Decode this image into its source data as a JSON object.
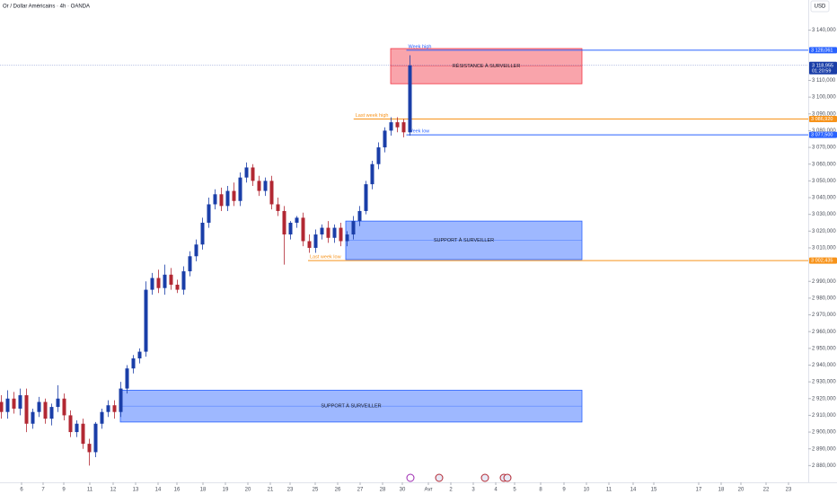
{
  "chart_data": {
    "type": "candlestick",
    "title": "Or / Dollar Américains · 4h · OANDA",
    "currency": "USD",
    "up_color": "#1a3ea8",
    "down_color": "#b22833",
    "xlim": [
      0,
      36
    ],
    "ylim": [
      2870,
      3158
    ],
    "grid": false,
    "xticks": [
      {
        "value": 0.96,
        "label": "6"
      },
      {
        "value": 1.92,
        "label": "7"
      },
      {
        "value": 2.84,
        "label": "9"
      },
      {
        "value": 4.0,
        "label": "11"
      },
      {
        "value": 5.04,
        "label": "12"
      },
      {
        "value": 6.04,
        "label": "13"
      },
      {
        "value": 7.04,
        "label": "14"
      },
      {
        "value": 7.88,
        "label": "16"
      },
      {
        "value": 9.04,
        "label": "18"
      },
      {
        "value": 10.04,
        "label": "19"
      },
      {
        "value": 11.04,
        "label": "20"
      },
      {
        "value": 12.04,
        "label": "21"
      },
      {
        "value": 12.92,
        "label": "23"
      },
      {
        "value": 14.04,
        "label": "25"
      },
      {
        "value": 15.04,
        "label": "26"
      },
      {
        "value": 16.04,
        "label": "27"
      },
      {
        "value": 17.04,
        "label": "28"
      },
      {
        "value": 17.92,
        "label": "30"
      },
      {
        "value": 19.08,
        "label": "Avr"
      },
      {
        "value": 20.08,
        "label": "2"
      },
      {
        "value": 21.08,
        "label": "3"
      },
      {
        "value": 22.08,
        "label": "4"
      },
      {
        "value": 22.92,
        "label": "5"
      },
      {
        "value": 24.08,
        "label": "8"
      },
      {
        "value": 25.12,
        "label": "9"
      },
      {
        "value": 26.12,
        "label": "10"
      },
      {
        "value": 27.12,
        "label": "11"
      },
      {
        "value": 28.2,
        "label": "14"
      },
      {
        "value": 29.12,
        "label": "15"
      },
      {
        "value": 31.12,
        "label": "17"
      },
      {
        "value": 32.12,
        "label": "18"
      },
      {
        "value": 33.0,
        "label": "20"
      },
      {
        "value": 34.12,
        "label": "22"
      },
      {
        "value": 35.12,
        "label": "23"
      }
    ],
    "yticks": [
      {
        "value": 2880,
        "label": "2 880,000"
      },
      {
        "value": 2890,
        "label": "2 890,000"
      },
      {
        "value": 2900,
        "label": "2 900,000"
      },
      {
        "value": 2910,
        "label": "2 910,000"
      },
      {
        "value": 2920,
        "label": "2 920,000"
      },
      {
        "value": 2930,
        "label": "2 930,000"
      },
      {
        "value": 2940,
        "label": "2 940,000"
      },
      {
        "value": 2950,
        "label": "2 950,000"
      },
      {
        "value": 2960,
        "label": "2 960,000"
      },
      {
        "value": 2970,
        "label": "2 970,000"
      },
      {
        "value": 2980,
        "label": "2 980,000"
      },
      {
        "value": 2990,
        "label": "2 990,000"
      },
      {
        "value": 3010,
        "label": "3 010,000"
      },
      {
        "value": 3020,
        "label": "3 020,000"
      },
      {
        "value": 3030,
        "label": "3 030,000"
      },
      {
        "value": 3040,
        "label": "3 040,000"
      },
      {
        "value": 3050,
        "label": "3 050,000"
      },
      {
        "value": 3060,
        "label": "3 060,000"
      },
      {
        "value": 3070,
        "label": "3 070,000"
      },
      {
        "value": 3080,
        "label": "3 080,000"
      },
      {
        "value": 3090,
        "label": "3 090,000"
      },
      {
        "value": 3100,
        "label": "3 100,000"
      },
      {
        "value": 3110,
        "label": "3 110,000"
      },
      {
        "value": 3140,
        "label": "3 140,000"
      }
    ],
    "x": [
      0.06,
      0.34,
      0.62,
      0.9,
      1.18,
      1.46,
      1.74,
      2.02,
      2.3,
      2.58,
      2.86,
      3.14,
      3.42,
      3.7,
      3.98,
      4.26,
      4.54,
      4.82,
      5.1,
      5.38,
      5.66,
      5.94,
      6.22,
      6.5,
      6.78,
      7.06,
      7.34,
      7.62,
      7.9,
      8.18,
      8.46,
      8.74,
      9.02,
      9.3,
      9.58,
      9.86,
      10.14,
      10.42,
      10.7,
      10.98,
      11.26,
      11.54,
      11.82,
      12.1,
      12.38,
      12.66,
      12.94,
      13.22,
      13.5,
      13.78,
      14.06,
      14.34,
      14.62,
      14.9,
      15.18,
      15.46,
      15.74,
      16.02,
      16.3,
      16.58,
      16.86,
      17.14,
      17.42,
      17.7,
      17.98,
      18.26
    ],
    "open": [
      2918,
      2912,
      2920,
      2914,
      2922,
      2905,
      2912,
      2918,
      2908,
      2915,
      2920,
      2910,
      2900,
      2905,
      2893,
      2888,
      2905,
      2912,
      2916,
      2912,
      2926,
      2938,
      2944,
      2948,
      2985,
      2992,
      2986,
      2994,
      2988,
      2985,
      2996,
      3005,
      3012,
      3025,
      3036,
      3042,
      3035,
      3044,
      3038,
      3052,
      3058,
      3050,
      3044,
      3050,
      3036,
      3032,
      3018,
      3025,
      3028,
      3014,
      3010,
      3018,
      3022,
      3016,
      3022,
      3014,
      3018,
      3026,
      3032,
      3048,
      3060,
      3070,
      3080,
      3085,
      3085,
      3079
    ],
    "high": [
      2922,
      2925,
      2924,
      2926,
      2926,
      2914,
      2921,
      2920,
      2917,
      2928,
      2923,
      2913,
      2907,
      2908,
      2896,
      2906,
      2914,
      2919,
      2919,
      2930,
      2940,
      2946,
      2950,
      2990,
      2995,
      2997,
      3000,
      2998,
      2991,
      2999,
      3008,
      3015,
      3028,
      3040,
      3045,
      3046,
      3047,
      3049,
      3055,
      3061,
      3060,
      3053,
      3052,
      3053,
      3040,
      3035,
      3026,
      3029,
      3031,
      3018,
      3021,
      3024,
      3026,
      3024,
      3025,
      3020,
      3029,
      3035,
      3050,
      3062,
      3073,
      3082,
      3088,
      3088,
      3087,
      3125
    ],
    "low": [
      2908,
      2908,
      2911,
      2910,
      2900,
      2902,
      2909,
      2905,
      2904,
      2912,
      2907,
      2897,
      2897,
      2890,
      2880,
      2885,
      2902,
      2909,
      2908,
      2909,
      2923,
      2935,
      2941,
      2945,
      2982,
      2983,
      2982,
      2985,
      2983,
      2982,
      2993,
      3002,
      3009,
      3022,
      3033,
      3032,
      3032,
      3035,
      3035,
      3049,
      3047,
      3041,
      3041,
      3033,
      3029,
      3000,
      3015,
      3022,
      3011,
      3007,
      3007,
      3015,
      3013,
      3013,
      3011,
      3011,
      3015,
      3023,
      3030,
      3045,
      3057,
      3067,
      3077,
      3079,
      3076,
      3077
    ],
    "close": [
      2912,
      2920,
      2914,
      2922,
      2905,
      2912,
      2918,
      2908,
      2915,
      2920,
      2910,
      2900,
      2905,
      2893,
      2888,
      2905,
      2912,
      2916,
      2912,
      2926,
      2938,
      2944,
      2948,
      2985,
      2992,
      2986,
      2994,
      2988,
      2985,
      2996,
      3005,
      3012,
      3025,
      3036,
      3042,
      3035,
      3044,
      3038,
      3052,
      3058,
      3050,
      3044,
      3050,
      3036,
      3032,
      3018,
      3025,
      3028,
      3014,
      3010,
      3018,
      3022,
      3016,
      3022,
      3014,
      3018,
      3026,
      3032,
      3048,
      3060,
      3070,
      3080,
      3085,
      3082,
      3079,
      3119
    ],
    "zones": [
      {
        "label": "RÉSISTANCE À SURVEILLER",
        "from": 17.4,
        "to": 25.92,
        "top": 3129,
        "bottom": 3108,
        "color": "#f23645"
      },
      {
        "label": "SUPPORT À SURVEILLER",
        "from": 15.4,
        "to": 25.92,
        "top": 3026,
        "bottom": 3003,
        "color": "#2962ff"
      },
      {
        "label": "SUPPORT À SURVEILLER",
        "from": 5.36,
        "to": 25.92,
        "top": 2925,
        "bottom": 2906,
        "color": "#2962ff"
      }
    ],
    "levels": [
      {
        "name": "Week high",
        "value": 3128.061,
        "value_label": "3 128,061",
        "from": 18.1,
        "color": "#2962ff"
      },
      {
        "name": "Last week high",
        "value": 3086.92,
        "value_label": "3 086,920",
        "from": 15.75,
        "color": "#f7931a"
      },
      {
        "name": "Week low",
        "value": 3077.5,
        "value_label": "3 077,500",
        "from": 18.1,
        "color": "#2962ff"
      },
      {
        "name": "Last week low",
        "value": 3002.435,
        "value_label": "3 002,435",
        "from": 13.72,
        "color": "#f7931a"
      }
    ],
    "last_price": {
      "value": 3118.955,
      "value_label": "3 118,955",
      "countdown": "01:20:59",
      "color": "#1a3ea8"
    }
  }
}
